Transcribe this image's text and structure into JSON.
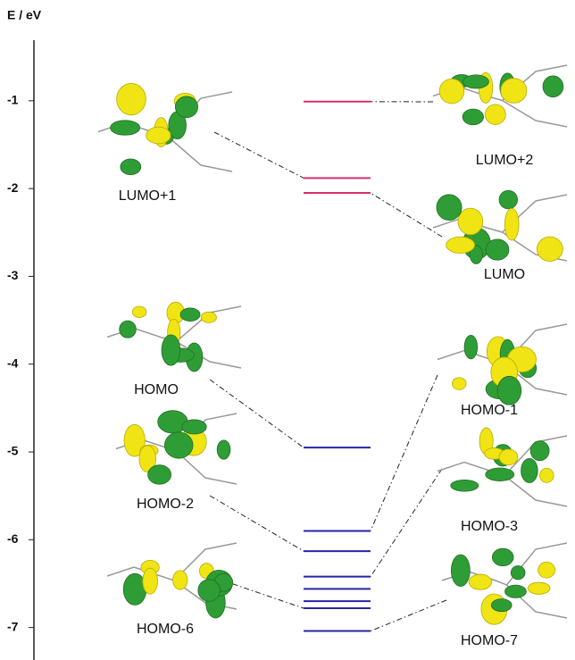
{
  "chart_data": {
    "type": "energy-level",
    "axis_label": "E / eV",
    "ylim": [
      -7.37,
      -0.31
    ],
    "yticks": [
      -1,
      -2,
      -3,
      -4,
      -5,
      -6,
      -7
    ],
    "levels": [
      {
        "color": "#d4306e",
        "values": [
          -1.01,
          -1.88,
          -2.05
        ]
      },
      {
        "color": "#2626a6",
        "values": [
          -4.95,
          -5.9,
          -6.13,
          -6.42,
          -6.56,
          -6.7,
          -6.78,
          -7.04
        ]
      }
    ],
    "orbitals": [
      "LUMO+1",
      "LUMO+2",
      "LUMO",
      "HOMO",
      "HOMO-1",
      "HOMO-2",
      "HOMO-3",
      "HOMO-6",
      "HOMO-7"
    ]
  }
}
